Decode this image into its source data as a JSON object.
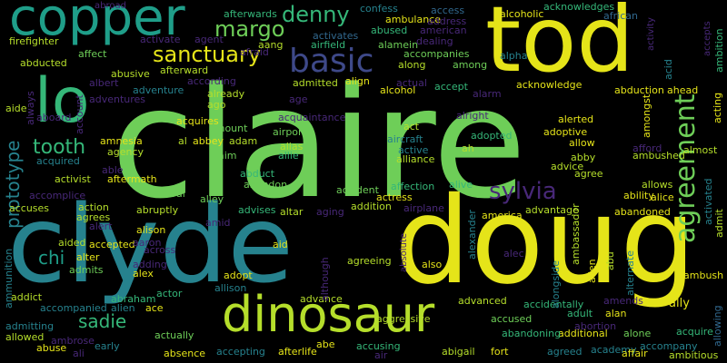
{
  "palette": {
    "background": "#000000",
    "yellow": "#e5e419",
    "lime": "#b5de2b",
    "green": "#6ece58",
    "mint": "#35b779",
    "teal": "#1f9e89",
    "cyan": "#26828e",
    "blue": "#31688e",
    "indigo": "#3e4989",
    "purple": "#482878",
    "violet": "#440154"
  },
  "words": [
    "claire",
    "clyde",
    "doug",
    "tod",
    "copper",
    "dinosaur",
    "lo",
    "agreement",
    "basic",
    "sanctuary",
    "denny",
    "margo",
    "sylvia",
    "tooth",
    "prototype",
    "chi",
    "sadie",
    "accident",
    "action",
    "absence",
    "abduct",
    "abducted",
    "abduction",
    "abroad",
    "absolute",
    "abuse",
    "abused",
    "abusive",
    "academy",
    "accept",
    "accepted",
    "accepting",
    "accepts",
    "access",
    "accidentally",
    "accompanied",
    "accompanies",
    "accompany",
    "accomplice",
    "according",
    "account",
    "accusing",
    "accused",
    "accuses",
    "ace",
    "acid",
    "acknowledge",
    "acknowledges",
    "acquire",
    "acquired",
    "acquires",
    "acquaintance",
    "across",
    "act",
    "acting",
    "activate",
    "activated",
    "activates",
    "active",
    "activist",
    "activity",
    "actor",
    "actress",
    "actual",
    "actually",
    "adam",
    "addict",
    "addition",
    "additional",
    "admiral",
    "admits",
    "admitted",
    "admitting",
    "adopt",
    "adopted",
    "adoptive",
    "adult",
    "advance",
    "advanced",
    "advantage",
    "adventure",
    "advice",
    "advises",
    "affair",
    "affect",
    "affection",
    "afford",
    "afraid",
    "african",
    "afterlife",
    "aftermath",
    "afterward",
    "afterwards",
    "age",
    "agency",
    "agent",
    "aggressive",
    "aging",
    "ago",
    "agree",
    "agreed",
    "agreeing",
    "agrees",
    "ah",
    "ahead",
    "aid",
    "aide",
    "aided",
    "aim",
    "air",
    "aircraft",
    "airfield",
    "airplane",
    "airport",
    "al",
    "alamein",
    "alan",
    "alarm",
    "albert",
    "alcohol",
    "alcoholic",
    "alec",
    "alert",
    "alerted",
    "alex",
    "alexander",
    "ali",
    "alias",
    "alice",
    "alien",
    "alison",
    "alive",
    "allen",
    "alley",
    "allie",
    "alliance",
    "allison",
    "allow",
    "allowed",
    "allowing",
    "allows",
    "ally",
    "almost",
    "alone",
    "along",
    "alongside",
    "alpha",
    "already",
    "also",
    "altar",
    "alter",
    "alternate",
    "although",
    "always",
    "amends",
    "america",
    "american",
    "amid",
    "ammunition",
    "among",
    "amongst",
    "amount",
    "amnesia",
    "ambassador",
    "ambition",
    "ambitious",
    "ambrose",
    "ambulance",
    "ambush",
    "ambushed",
    "aang",
    "abe",
    "abigail",
    "abraham",
    "abu",
    "abruptly",
    "abandon",
    "abandoned",
    "abandoning",
    "abbey",
    "abby",
    "able",
    "ability",
    "abortion",
    "aaron",
    "admit",
    "address",
    "adding",
    "adventures",
    "align",
    "alright",
    "aboard",
    "confess",
    "dealing",
    "firefighter",
    "fort",
    "early",
    "alive",
    "ace"
  ]
}
